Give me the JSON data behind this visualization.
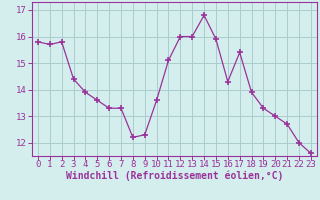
{
  "x": [
    0,
    1,
    2,
    3,
    4,
    5,
    6,
    7,
    8,
    9,
    10,
    11,
    12,
    13,
    14,
    15,
    16,
    17,
    18,
    19,
    20,
    21,
    22,
    23
  ],
  "y": [
    15.8,
    15.7,
    15.8,
    14.4,
    13.9,
    13.6,
    13.3,
    13.3,
    12.2,
    12.3,
    13.6,
    15.1,
    16.0,
    16.0,
    16.8,
    15.9,
    14.3,
    15.4,
    13.9,
    13.3,
    13.0,
    12.7,
    12.0,
    11.6
  ],
  "line_color": "#993399",
  "marker_color": "#993399",
  "bg_color": "#d4eeee",
  "grid_color": "#aacccc",
  "xlabel": "Windchill (Refroidissement éolien,°C)",
  "ylabel_ticks": [
    12,
    13,
    14,
    15,
    16,
    17
  ],
  "xlim": [
    -0.5,
    23.5
  ],
  "ylim": [
    11.5,
    17.3
  ],
  "xticks": [
    0,
    1,
    2,
    3,
    4,
    5,
    6,
    7,
    8,
    9,
    10,
    11,
    12,
    13,
    14,
    15,
    16,
    17,
    18,
    19,
    20,
    21,
    22,
    23
  ],
  "xlabel_fontsize": 7,
  "tick_fontsize": 6.5,
  "figsize": [
    3.2,
    2.0
  ],
  "dpi": 100
}
